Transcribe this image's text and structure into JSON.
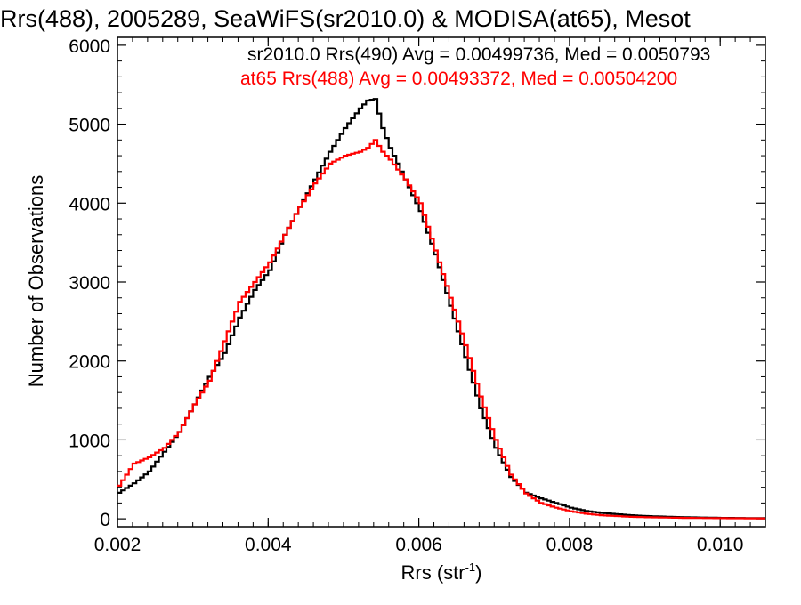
{
  "chart_data": {
    "type": "line",
    "title": "Rrs(488), 2005289, SeaWiFS(sr2010.0) & MODISA(at65), Mesot",
    "xlabel": "Rrs (str",
    "xlabel_sup": "-1",
    "xlabel_end": ")",
    "ylabel": "Number of Observations",
    "xlim": [
      0.002,
      0.0106
    ],
    "ylim": [
      -100,
      6100
    ],
    "x_ticks": [
      0.002,
      0.004,
      0.006,
      0.008,
      0.01
    ],
    "x_tick_labels": [
      "0.002",
      "0.004",
      "0.006",
      "0.008",
      "0.010"
    ],
    "y_ticks": [
      0,
      1000,
      2000,
      3000,
      4000,
      5000,
      6000
    ],
    "y_tick_labels": [
      "0",
      "1000",
      "2000",
      "3000",
      "4000",
      "5000",
      "6000"
    ],
    "grid": false,
    "legend": "top-right",
    "series": [
      {
        "name": "sr2010.0 Rrs(490) Avg = 0.00499736, Med = 0.0050793",
        "color": "#000000",
        "x": [
          0.002,
          0.0022,
          0.0024,
          0.0026,
          0.0028,
          0.003,
          0.0032,
          0.0034,
          0.0036,
          0.0038,
          0.004,
          0.0042,
          0.0044,
          0.0046,
          0.0048,
          0.005,
          0.0052,
          0.0053,
          0.0054,
          0.0055,
          0.0056,
          0.0058,
          0.006,
          0.0062,
          0.0064,
          0.0066,
          0.0068,
          0.007,
          0.0072,
          0.0074,
          0.0076,
          0.0078,
          0.008,
          0.0082,
          0.0084,
          0.0086,
          0.0088,
          0.009,
          0.0095,
          0.01,
          0.0106
        ],
        "y": [
          330,
          450,
          600,
          850,
          1100,
          1450,
          1800,
          2100,
          2550,
          2900,
          3150,
          3600,
          3950,
          4300,
          4650,
          4950,
          5200,
          5300,
          5320,
          4950,
          4700,
          4300,
          3900,
          3350,
          2700,
          2050,
          1400,
          900,
          530,
          330,
          260,
          200,
          140,
          100,
          75,
          60,
          45,
          35,
          20,
          12,
          8
        ]
      },
      {
        "name": "at65 Rrs(488) Avg = 0.00493372, Med = 0.00504200",
        "color": "#ff0000",
        "x": [
          0.002,
          0.0022,
          0.0024,
          0.0026,
          0.0028,
          0.003,
          0.0032,
          0.0034,
          0.0036,
          0.0038,
          0.004,
          0.0042,
          0.0044,
          0.0046,
          0.0048,
          0.005,
          0.0052,
          0.0053,
          0.0054,
          0.0055,
          0.0056,
          0.0058,
          0.006,
          0.0062,
          0.0064,
          0.0066,
          0.0068,
          0.007,
          0.0072,
          0.0074,
          0.0076,
          0.0078,
          0.008,
          0.0082,
          0.0084,
          0.0086,
          0.0088,
          0.009,
          0.0095,
          0.01,
          0.0106
        ],
        "y": [
          420,
          700,
          780,
          900,
          1100,
          1450,
          1750,
          2250,
          2750,
          3000,
          3250,
          3600,
          3950,
          4250,
          4500,
          4600,
          4650,
          4700,
          4800,
          4650,
          4550,
          4300,
          4000,
          3400,
          2800,
          2200,
          1550,
          1000,
          560,
          320,
          200,
          140,
          95,
          65,
          45,
          35,
          25,
          20,
          12,
          8,
          5
        ]
      }
    ]
  }
}
